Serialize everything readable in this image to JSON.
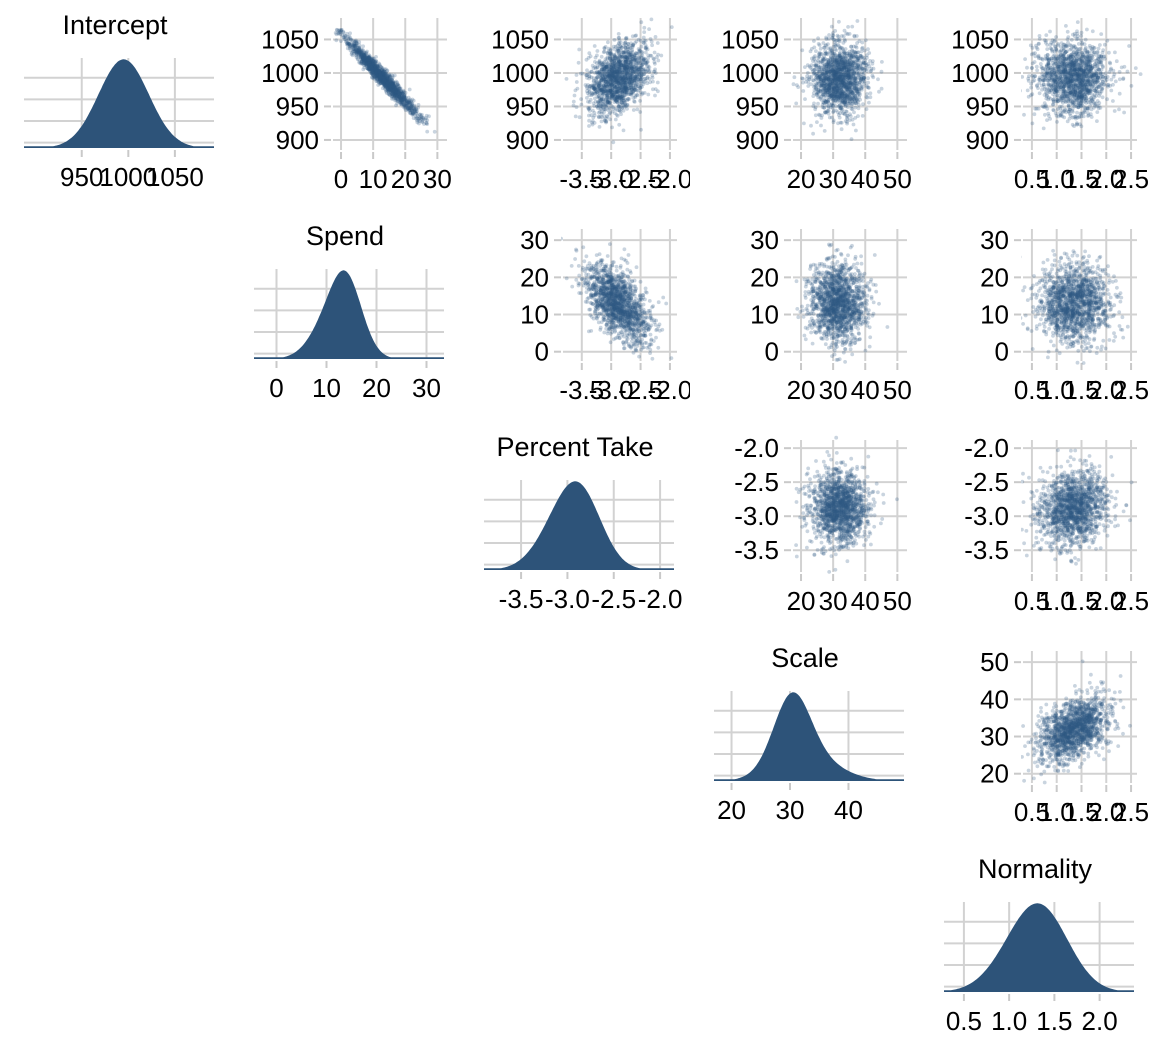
{
  "chart_data": {
    "type": "pairs_plot",
    "description": "Posterior pairs plot: marginal densities on the diagonal, pairwise scatter plots in the upper triangle",
    "style": {
      "fill_color": "#2d5379",
      "point_color": "#2f5a82",
      "point_opacity": 0.26,
      "grid_color": "#d2d2d2",
      "tick_color": "#c9c9c9",
      "text_color": "#000000",
      "background": "#ffffff"
    },
    "points_per_panel": 1500,
    "variables": [
      {
        "name": "Intercept",
        "density": {
          "tick_values": [
            950,
            1000,
            1050
          ],
          "tick_labels": [
            "950",
            "1000",
            "1050"
          ],
          "range": [
            888,
            1092
          ],
          "components": [
            {
              "mu": 995,
              "sigma": 27,
              "w": 1.0
            }
          ]
        },
        "scatter_axis": {
          "tick_values": [
            900,
            950,
            1000,
            1050
          ],
          "tick_labels": [
            "900",
            "950",
            "1000",
            "1050"
          ],
          "range": [
            885,
            1082
          ],
          "mean": 993,
          "sd": 27
        }
      },
      {
        "name": "Spend",
        "density": {
          "tick_values": [
            0,
            10,
            20,
            30
          ],
          "tick_labels": [
            "0",
            "10",
            "20",
            "30"
          ],
          "range": [
            -4.5,
            33.5
          ],
          "components": [
            {
              "mu": 11.6,
              "sigma": 4.0,
              "w": 0.52
            },
            {
              "mu": 14.3,
              "sigma": 3.0,
              "w": 0.55
            }
          ]
        },
        "scatter_axis": {
          "tick_values": [
            0,
            10,
            20,
            30
          ],
          "tick_labels": [
            "0",
            "10",
            "20",
            "30"
          ],
          "range": [
            -2.5,
            33
          ],
          "mean": 13,
          "sd": 5.2
        }
      },
      {
        "name": "Percent Take",
        "density": {
          "tick_values": [
            -3.5,
            -3.0,
            -2.5,
            -2.0
          ],
          "tick_labels": [
            "-3.5",
            "-3.0",
            "-2.5",
            "-2.0"
          ],
          "range": [
            -3.9,
            -1.85
          ],
          "components": [
            {
              "mu": -3.0,
              "sigma": 0.27,
              "w": 0.7
            },
            {
              "mu": -2.82,
              "sigma": 0.22,
              "w": 0.42
            }
          ]
        },
        "scatter_axis": {
          "tick_values": [
            -3.5,
            -3.0,
            -2.5,
            -2.0
          ],
          "tick_labels": [
            "-3.5",
            "-3.0",
            "-2.5",
            "-2.0"
          ],
          "range": [
            -3.82,
            -1.88
          ],
          "mean": -2.88,
          "sd": 0.27
        }
      },
      {
        "name": "Scale",
        "density": {
          "tick_values": [
            20,
            30,
            40
          ],
          "tick_labels": [
            "20",
            "30",
            "40"
          ],
          "range": [
            17,
            49.5
          ],
          "components": [
            {
              "mu": 30.3,
              "sigma": 3.1,
              "w": 0.8
            },
            {
              "mu": 33,
              "sigma": 5.2,
              "w": 0.28
            }
          ]
        },
        "scatter_axis": {
          "tick_values": [
            20,
            30,
            40,
            50
          ],
          "tick_labels": [
            "20",
            "30",
            "40",
            "50"
          ],
          "range": [
            17.5,
            53
          ],
          "mean": 31.8,
          "sd": 4.3
        }
      },
      {
        "name": "Normality",
        "density": {
          "tick_values": [
            0.5,
            1.0,
            1.5,
            2.0
          ],
          "tick_labels": [
            "0.5",
            "1.0",
            "1.5",
            "2.0"
          ],
          "range": [
            0.28,
            2.38
          ],
          "components": [
            {
              "mu": 1.25,
              "sigma": 0.33,
              "w": 0.85
            },
            {
              "mu": 1.45,
              "sigma": 0.28,
              "w": 0.3
            }
          ]
        },
        "scatter_axis": {
          "tick_values": [
            0.5,
            1.0,
            1.5,
            2.0,
            2.5
          ],
          "tick_labels": [
            "0.5",
            "1.0",
            "1.5",
            "2.0",
            "2.5"
          ],
          "range": [
            0.32,
            2.62
          ],
          "mean": 1.33,
          "sd": 0.36
        }
      }
    ],
    "correlation_matrix": [
      [
        1.0,
        -0.97,
        0.4,
        0.02,
        0.05
      ],
      [
        -0.97,
        1.0,
        -0.55,
        -0.02,
        0.03
      ],
      [
        0.4,
        -0.55,
        1.0,
        -0.03,
        0.12
      ],
      [
        0.02,
        -0.02,
        -0.03,
        1.0,
        0.45
      ],
      [
        0.05,
        0.03,
        0.12,
        0.45,
        1.0
      ]
    ]
  }
}
